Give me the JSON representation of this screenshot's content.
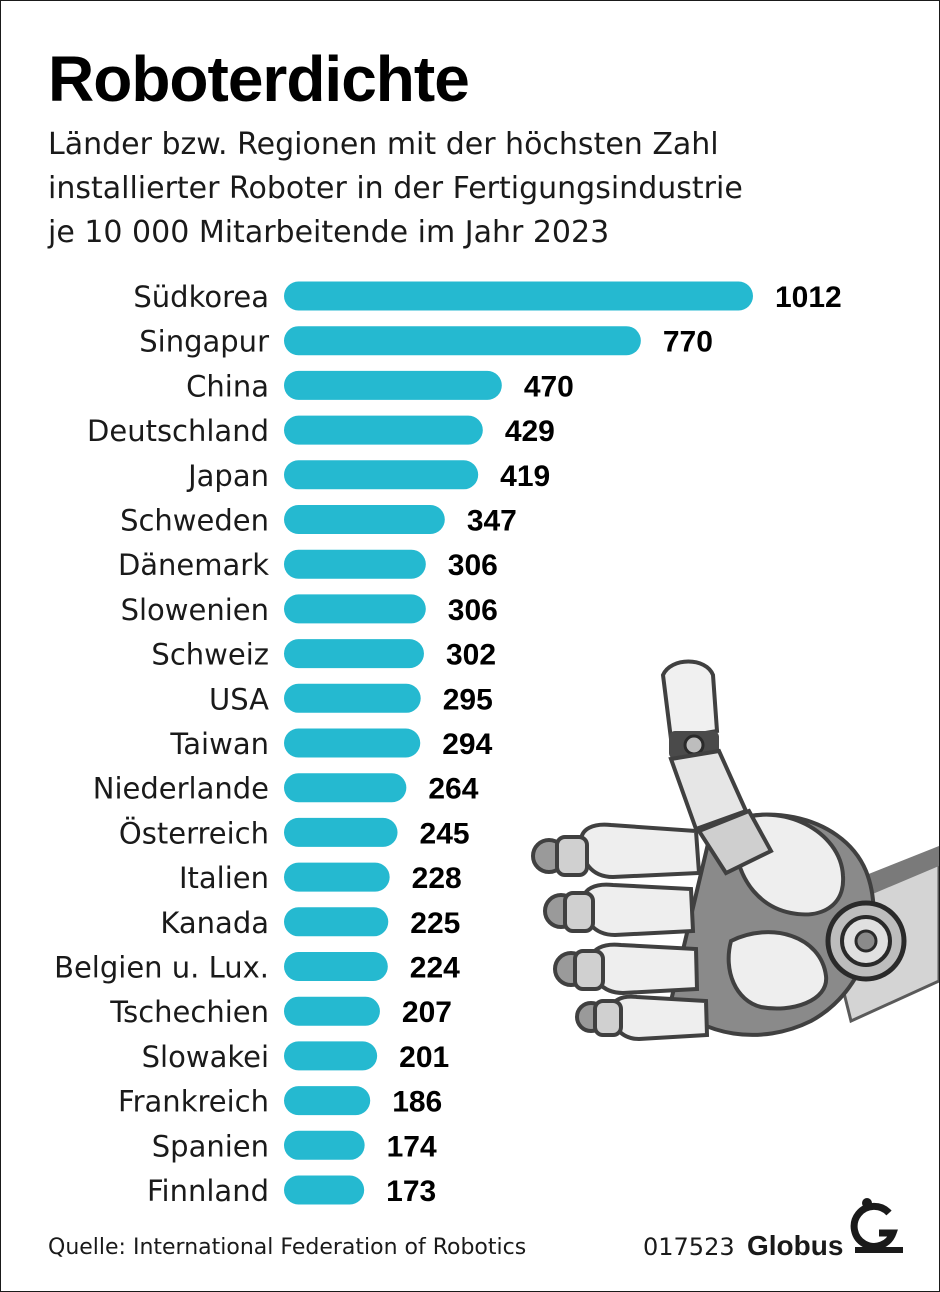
{
  "title": "Roboterdichte",
  "subtitle_lines": [
    "Länder bzw. Regionen mit der höchsten Zahl",
    "installierter Roboter in der Fertigungsindustrie",
    "je 10 000 Mitarbeitende im Jahr 2023"
  ],
  "source": "Quelle: International Federation of Robotics",
  "graphic_code": "017523",
  "brand": "Globus",
  "colors": {
    "bar": "#25b9d0",
    "text": "#1a1a1a",
    "value_text": "#000000"
  },
  "icons": [
    "robot-hand-thumbs-up-icon",
    "globus-logo-icon"
  ],
  "chart_data": {
    "type": "bar",
    "orientation": "horizontal",
    "title": "Roboterdichte",
    "categories": [
      "Südkorea",
      "Singapur",
      "China",
      "Deutschland",
      "Japan",
      "Schweden",
      "Dänemark",
      "Slowenien",
      "Schweiz",
      "USA",
      "Taiwan",
      "Niederlande",
      "Österreich",
      "Italien",
      "Kanada",
      "Belgien u. Lux.",
      "Tschechien",
      "Slowakei",
      "Frankreich",
      "Spanien",
      "Finnland"
    ],
    "values": [
      1012,
      770,
      470,
      429,
      419,
      347,
      306,
      306,
      302,
      295,
      294,
      264,
      245,
      228,
      225,
      224,
      207,
      201,
      186,
      174,
      173
    ],
    "data_labels": [
      "1012",
      "770",
      "470",
      "429",
      "419",
      "347",
      "306",
      "306",
      "302",
      "295",
      "294",
      "264",
      "245",
      "228",
      "225",
      "224",
      "207",
      "201",
      "186",
      "174",
      "173"
    ],
    "xlim": [
      0,
      1012
    ],
    "grid": false,
    "legend": "none"
  }
}
